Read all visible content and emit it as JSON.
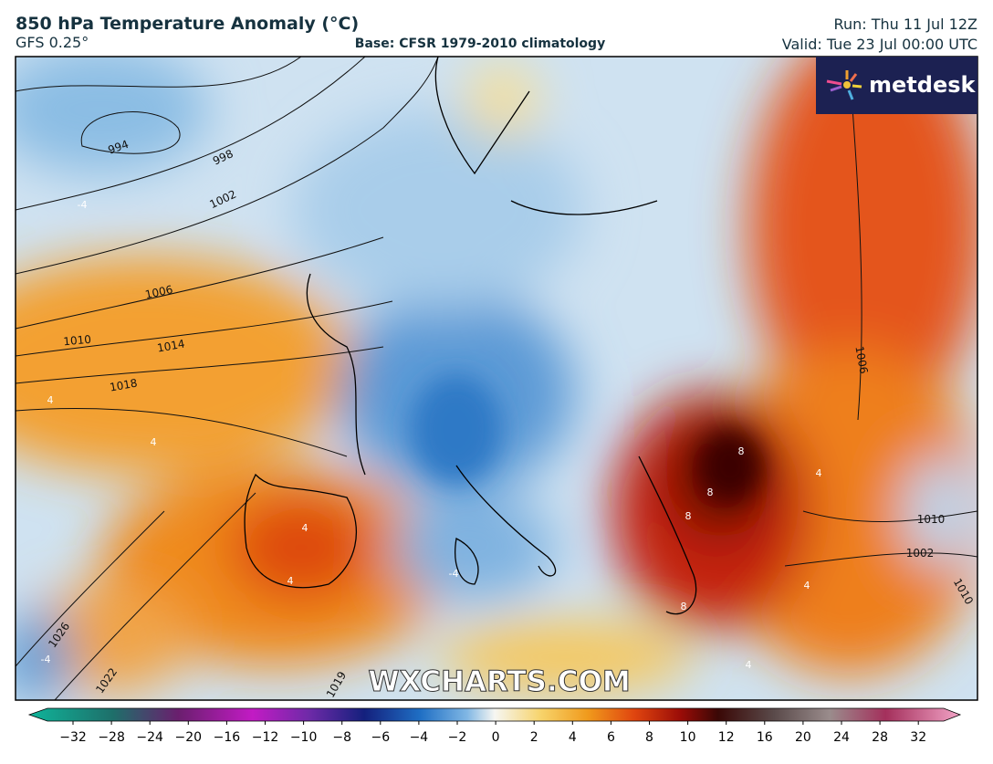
{
  "header": {
    "title": "850 hPa Temperature Anomaly (°C)",
    "model": "GFS 0.25°",
    "base": "Base: CFSR 1979-2010 climatology",
    "run": "Run: Thu 11 Jul 12Z",
    "valid": "Valid: Tue 23 Jul 00:00 UTC"
  },
  "logo": "metdesk",
  "watermark": "WXCHARTS.COM",
  "isobar_labels": [
    "994",
    "998",
    "1002",
    "1006",
    "1010",
    "1014",
    "1018",
    "1026",
    "1022",
    "1019",
    "1006",
    "1010",
    "1002",
    "1010"
  ],
  "anomaly_labels": [
    "-4",
    "4",
    "4",
    "-4",
    "4",
    "4",
    "8",
    "8",
    "8",
    "8",
    "4",
    "4",
    "-4",
    "4"
  ],
  "colorbar": {
    "labels": [
      "−32",
      "−28",
      "−24",
      "−20",
      "−16",
      "−12",
      "−10",
      "−8",
      "−6",
      "−4",
      "−2",
      "0",
      "2",
      "4",
      "6",
      "8",
      "10",
      "12",
      "16",
      "20",
      "24",
      "28",
      "32"
    ]
  }
}
